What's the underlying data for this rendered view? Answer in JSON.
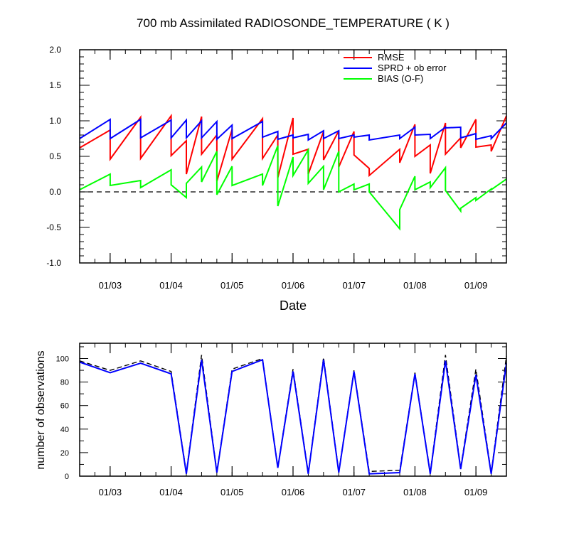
{
  "chart_data": [
    {
      "type": "line",
      "title": "700 mb Assimilated RADIOSONDE_TEMPERATURE ( K )",
      "xlabel": "Date",
      "ylabel": "",
      "x_tick_labels": [
        "01/03",
        "01/04",
        "01/05",
        "01/06",
        "01/07",
        "01/08",
        "01/09"
      ],
      "xlim": [
        "01/02 12Z",
        "01/09 12Z"
      ],
      "x_tick_dates": [
        "01/03 00Z",
        "01/04 00Z",
        "01/05 00Z",
        "01/06 00Z",
        "01/07 00Z",
        "01/08 00Z",
        "01/09 00Z"
      ],
      "ylim": [
        -1.0,
        2.0
      ],
      "y_tick_labels": [
        "2.0",
        "1.5",
        "1.0",
        "0.5",
        "0.0",
        "-0.5",
        "-1.0"
      ],
      "legend_position": "top-right",
      "reference_line": {
        "y": 0.0,
        "style": "dashed",
        "color": "#000000"
      },
      "series": [
        {
          "name": "RMSE",
          "color": "#ff0000",
          "points": [
            [
              "01/02 12Z",
              0.62
            ],
            [
              "01/03 00Z",
              0.87
            ],
            [
              "01/03 00Z",
              0.46
            ],
            [
              "01/03 12Z",
              1.05
            ],
            [
              "01/03 12Z",
              0.47
            ],
            [
              "01/04 00Z",
              1.07
            ],
            [
              "01/04 00Z",
              0.51
            ],
            [
              "01/04 06Z",
              0.72
            ],
            [
              "01/04 06Z",
              0.25
            ],
            [
              "01/04 12Z",
              1.06
            ],
            [
              "01/04 12Z",
              0.53
            ],
            [
              "01/04 18Z",
              0.8
            ],
            [
              "01/04 18Z",
              0.15
            ],
            [
              "01/05 00Z",
              0.88
            ],
            [
              "01/05 00Z",
              0.46
            ],
            [
              "01/05 12Z",
              1.03
            ],
            [
              "01/05 12Z",
              0.47
            ],
            [
              "01/05 18Z",
              0.8
            ],
            [
              "01/05 18Z",
              0.2
            ],
            [
              "01/06 00Z",
              1.04
            ],
            [
              "01/06 00Z",
              0.53
            ],
            [
              "01/06 06Z",
              0.6
            ],
            [
              "01/06 06Z",
              0.25
            ],
            [
              "01/06 12Z",
              0.85
            ],
            [
              "01/06 12Z",
              0.45
            ],
            [
              "01/06 18Z",
              0.86
            ],
            [
              "01/06 18Z",
              0.35
            ],
            [
              "01/07 00Z",
              0.85
            ],
            [
              "01/07 00Z",
              0.52
            ],
            [
              "01/07 06Z",
              0.33
            ],
            [
              "01/07 06Z",
              0.23
            ],
            [
              "01/07 18Z",
              0.6
            ],
            [
              "01/07 18Z",
              0.41
            ],
            [
              "01/08 00Z",
              0.95
            ],
            [
              "01/08 00Z",
              0.5
            ],
            [
              "01/08 06Z",
              0.66
            ],
            [
              "01/08 06Z",
              0.26
            ],
            [
              "01/08 12Z",
              0.97
            ],
            [
              "01/08 12Z",
              0.53
            ],
            [
              "01/08 18Z",
              0.76
            ],
            [
              "01/08 18Z",
              0.62
            ],
            [
              "01/09 00Z",
              1.02
            ],
            [
              "01/09 00Z",
              0.63
            ],
            [
              "01/09 06Z",
              0.66
            ],
            [
              "01/09 06Z",
              0.57
            ],
            [
              "01/09 12Z",
              1.07
            ]
          ]
        },
        {
          "name": "SPRD + ob error",
          "color": "#0000ff",
          "points": [
            [
              "01/02 12Z",
              0.75
            ],
            [
              "01/03 00Z",
              1.02
            ],
            [
              "01/03 00Z",
              0.75
            ],
            [
              "01/03 12Z",
              1.02
            ],
            [
              "01/03 12Z",
              0.76
            ],
            [
              "01/04 00Z",
              1.01
            ],
            [
              "01/04 00Z",
              0.76
            ],
            [
              "01/04 06Z",
              1.01
            ],
            [
              "01/04 06Z",
              0.76
            ],
            [
              "01/04 12Z",
              1.0
            ],
            [
              "01/04 12Z",
              0.76
            ],
            [
              "01/04 18Z",
              0.99
            ],
            [
              "01/04 18Z",
              0.74
            ],
            [
              "01/05 00Z",
              0.94
            ],
            [
              "01/05 00Z",
              0.75
            ],
            [
              "01/05 12Z",
              0.99
            ],
            [
              "01/05 12Z",
              0.77
            ],
            [
              "01/05 18Z",
              0.85
            ],
            [
              "01/05 18Z",
              0.74
            ],
            [
              "01/06 00Z",
              0.8
            ],
            [
              "01/06 00Z",
              0.76
            ],
            [
              "01/06 06Z",
              0.81
            ],
            [
              "01/06 06Z",
              0.73
            ],
            [
              "01/06 12Z",
              0.86
            ],
            [
              "01/06 12Z",
              0.75
            ],
            [
              "01/06 18Z",
              0.86
            ],
            [
              "01/06 18Z",
              0.75
            ],
            [
              "01/07 00Z",
              0.8
            ],
            [
              "01/07 00Z",
              0.77
            ],
            [
              "01/07 06Z",
              0.8
            ],
            [
              "01/07 06Z",
              0.73
            ],
            [
              "01/07 18Z",
              0.8
            ],
            [
              "01/07 18Z",
              0.75
            ],
            [
              "01/08 00Z",
              0.91
            ],
            [
              "01/08 00Z",
              0.8
            ],
            [
              "01/08 06Z",
              0.81
            ],
            [
              "01/08 06Z",
              0.75
            ],
            [
              "01/08 12Z",
              0.91
            ],
            [
              "01/08 12Z",
              0.9
            ],
            [
              "01/08 18Z",
              0.91
            ],
            [
              "01/08 18Z",
              0.76
            ],
            [
              "01/09 00Z",
              0.82
            ],
            [
              "01/09 00Z",
              0.74
            ],
            [
              "01/09 06Z",
              0.79
            ],
            [
              "01/09 06Z",
              0.75
            ],
            [
              "01/09 12Z",
              0.97
            ]
          ]
        },
        {
          "name": "BIAS (O-F)",
          "color": "#00ff00",
          "points": [
            [
              "01/02 12Z",
              0.03
            ],
            [
              "01/03 00Z",
              0.25
            ],
            [
              "01/03 00Z",
              0.09
            ],
            [
              "01/03 12Z",
              0.16
            ],
            [
              "01/03 12Z",
              0.06
            ],
            [
              "01/04 00Z",
              0.31
            ],
            [
              "01/04 00Z",
              0.1
            ],
            [
              "01/04 06Z",
              -0.08
            ],
            [
              "01/04 06Z",
              0.12
            ],
            [
              "01/04 12Z",
              0.35
            ],
            [
              "01/04 12Z",
              0.14
            ],
            [
              "01/04 18Z",
              0.57
            ],
            [
              "01/04 18Z",
              -0.04
            ],
            [
              "01/05 00Z",
              0.36
            ],
            [
              "01/05 00Z",
              0.09
            ],
            [
              "01/05 12Z",
              0.25
            ],
            [
              "01/05 12Z",
              0.09
            ],
            [
              "01/05 18Z",
              0.65
            ],
            [
              "01/05 18Z",
              -0.2
            ],
            [
              "01/06 00Z",
              0.49
            ],
            [
              "01/06 00Z",
              0.23
            ],
            [
              "01/06 06Z",
              0.59
            ],
            [
              "01/06 06Z",
              0.12
            ],
            [
              "01/06 12Z",
              0.36
            ],
            [
              "01/06 12Z",
              0.03
            ],
            [
              "01/06 18Z",
              0.57
            ],
            [
              "01/06 18Z",
              0.0
            ],
            [
              "01/07 00Z",
              0.11
            ],
            [
              "01/07 00Z",
              0.03
            ],
            [
              "01/07 06Z",
              0.11
            ],
            [
              "01/07 06Z",
              0.0
            ],
            [
              "01/07 18Z",
              -0.52
            ],
            [
              "01/07 18Z",
              -0.25
            ],
            [
              "01/08 00Z",
              0.22
            ],
            [
              "01/08 00Z",
              0.03
            ],
            [
              "01/08 06Z",
              0.14
            ],
            [
              "01/08 06Z",
              0.06
            ],
            [
              "01/08 12Z",
              0.34
            ],
            [
              "01/08 12Z",
              0.02
            ],
            [
              "01/08 18Z",
              -0.27
            ],
            [
              "01/08 18Z",
              -0.23
            ],
            [
              "01/09 00Z",
              -0.08
            ],
            [
              "01/09 00Z",
              -0.12
            ],
            [
              "01/09 06Z",
              0.04
            ],
            [
              "01/09 06Z",
              0.03
            ],
            [
              "01/09 12Z",
              0.18
            ]
          ]
        }
      ]
    },
    {
      "type": "line",
      "title": "",
      "xlabel": "",
      "ylabel": "number of observations",
      "x_tick_labels": [
        "01/03",
        "01/04",
        "01/05",
        "01/06",
        "01/07",
        "01/08",
        "01/09"
      ],
      "xlim": [
        "01/02 12Z",
        "01/09 12Z"
      ],
      "x_tick_dates": [
        "01/03 00Z",
        "01/04 00Z",
        "01/05 00Z",
        "01/06 00Z",
        "01/07 00Z",
        "01/08 00Z",
        "01/09 00Z"
      ],
      "ylim": [
        0,
        113
      ],
      "y_tick_labels": [
        "0",
        "20",
        "40",
        "60",
        "80",
        "100"
      ],
      "series": [
        {
          "color": "#000000",
          "style": "dashed",
          "points": [
            [
              "01/02 12Z",
              98
            ],
            [
              "01/03 00Z",
              90
            ],
            [
              "01/03 12Z",
              98
            ],
            [
              "01/04 00Z",
              89
            ],
            [
              "01/04 06Z",
              3
            ],
            [
              "01/04 12Z",
              103
            ],
            [
              "01/04 18Z",
              4
            ],
            [
              "01/05 00Z",
              91
            ],
            [
              "01/05 12Z",
              100
            ],
            [
              "01/05 18Z",
              8
            ],
            [
              "01/06 00Z",
              91
            ],
            [
              "01/06 06Z",
              3
            ],
            [
              "01/06 12Z",
              101
            ],
            [
              "01/06 18Z",
              4
            ],
            [
              "01/07 00Z",
              90
            ],
            [
              "01/07 06Z",
              4
            ],
            [
              "01/07 18Z",
              5
            ],
            [
              "01/08 00Z",
              88
            ],
            [
              "01/08 06Z",
              3
            ],
            [
              "01/08 12Z",
              103
            ],
            [
              "01/08 18Z",
              7
            ],
            [
              "01/09 00Z",
              91
            ],
            [
              "01/09 06Z",
              3
            ],
            [
              "01/09 12Z",
              102
            ]
          ]
        },
        {
          "color": "#0000ff",
          "style": "solid",
          "points": [
            [
              "01/02 12Z",
              97
            ],
            [
              "01/03 00Z",
              88
            ],
            [
              "01/03 12Z",
              96
            ],
            [
              "01/04 00Z",
              87
            ],
            [
              "01/04 06Z",
              2
            ],
            [
              "01/04 12Z",
              99
            ],
            [
              "01/04 18Z",
              3
            ],
            [
              "01/05 00Z",
              89
            ],
            [
              "01/05 12Z",
              99
            ],
            [
              "01/05 18Z",
              7
            ],
            [
              "01/06 00Z",
              89
            ],
            [
              "01/06 06Z",
              2
            ],
            [
              "01/06 12Z",
              99
            ],
            [
              "01/06 18Z",
              3
            ],
            [
              "01/07 00Z",
              89
            ],
            [
              "01/07 06Z",
              2
            ],
            [
              "01/07 18Z",
              3
            ],
            [
              "01/08 00Z",
              87
            ],
            [
              "01/08 06Z",
              2
            ],
            [
              "01/08 12Z",
              98
            ],
            [
              "01/08 18Z",
              6
            ],
            [
              "01/09 00Z",
              86
            ],
            [
              "01/09 06Z",
              2
            ],
            [
              "01/09 12Z",
              96
            ]
          ]
        }
      ]
    }
  ]
}
